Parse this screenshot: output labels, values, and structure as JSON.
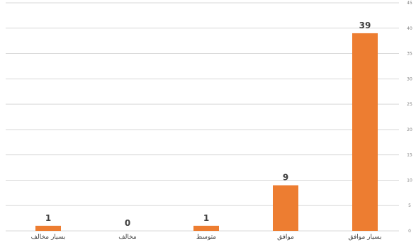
{
  "chart_data": {
    "type": "bar",
    "orientation": "vertical",
    "axis_side": "right",
    "categories": [
      "بسيار موافق",
      "موافق",
      "متوسط",
      "مخالف",
      "بسيار مخالف"
    ],
    "values": [
      39,
      9,
      1,
      0,
      1
    ],
    "data_labels": [
      "39",
      "9",
      "1",
      "0",
      "1"
    ],
    "yticks": [
      "0",
      "5",
      "10",
      "15",
      "20",
      "25",
      "30",
      "35",
      "40",
      "45"
    ],
    "ylim": [
      0,
      45
    ],
    "grid": true,
    "legend": "none",
    "bar_color": "#ed7d31",
    "grid_color": "#d9d9d9",
    "text_color": "#404040"
  }
}
